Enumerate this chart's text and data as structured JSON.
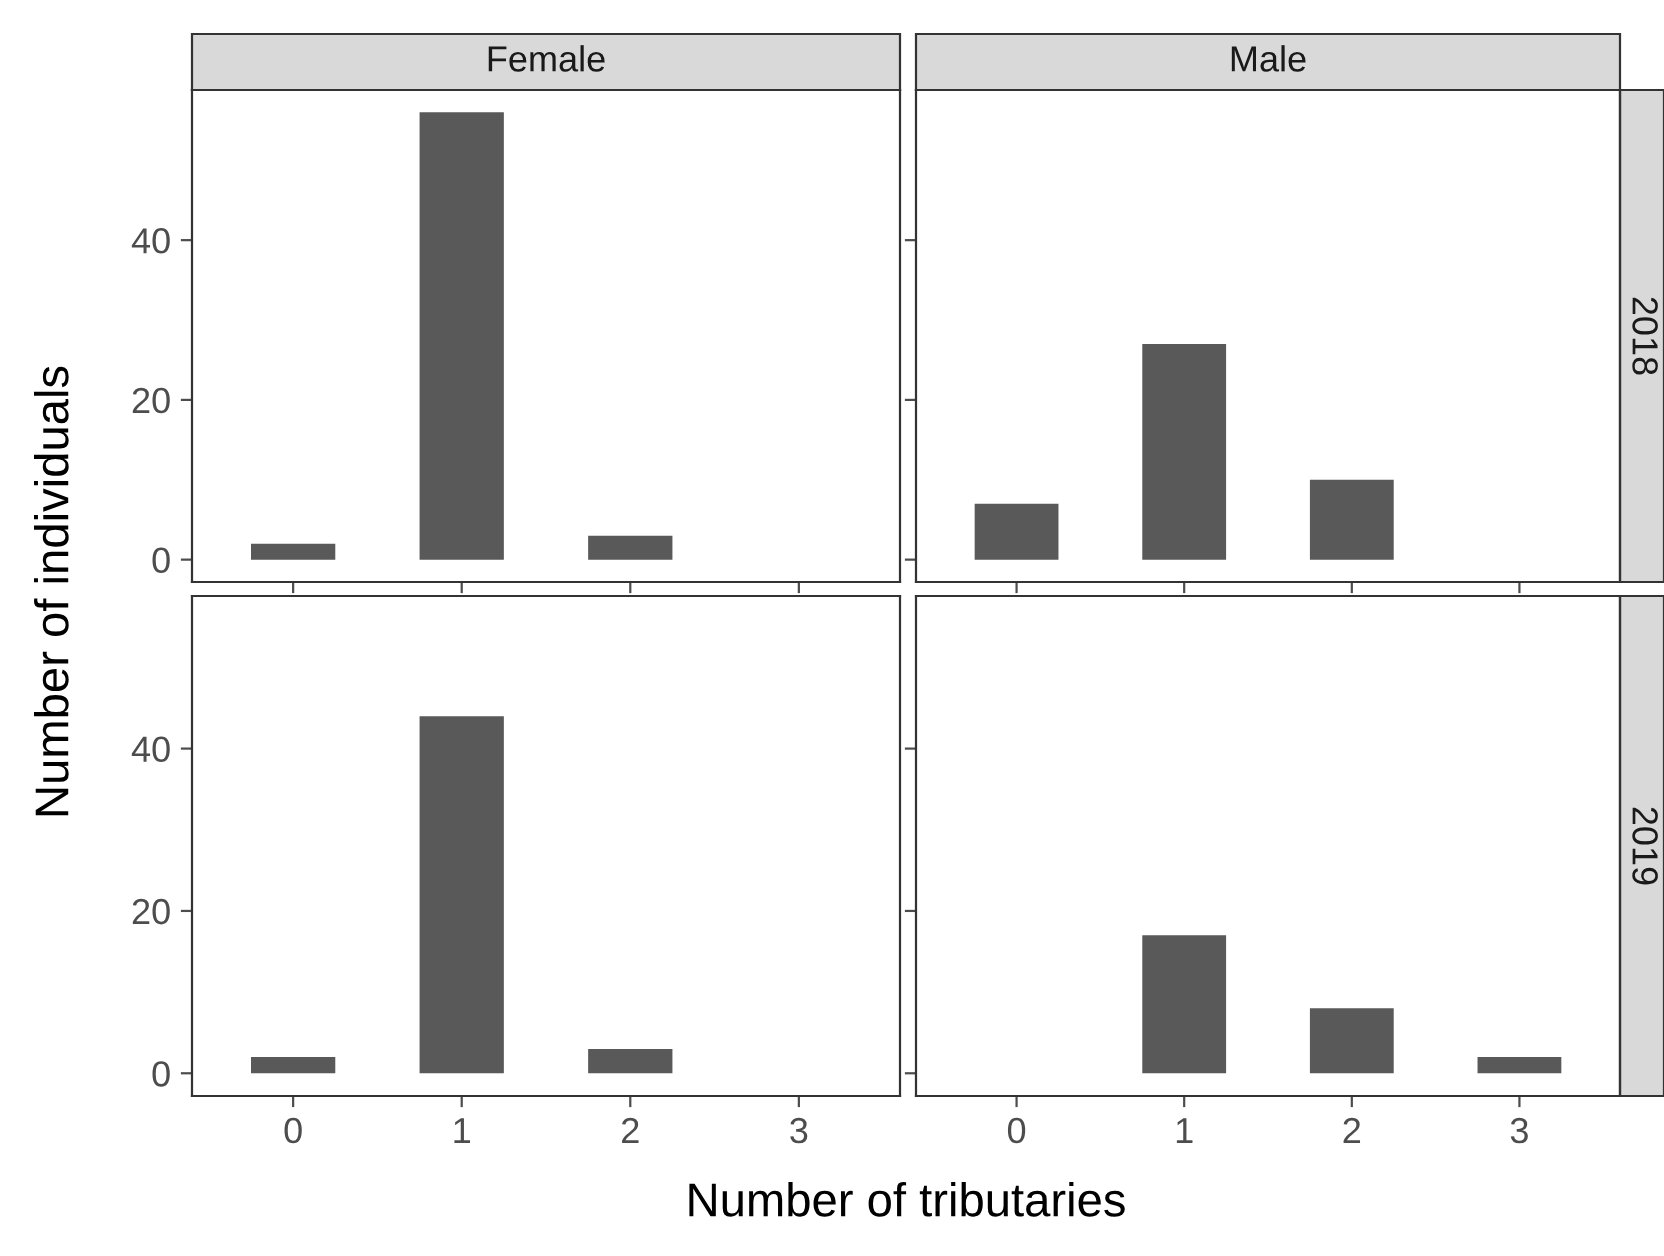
{
  "chart_data": [
    {
      "type": "bar",
      "title": "Female",
      "ylabel": "Number of individuals",
      "categories": [
        "0",
        "1",
        "2",
        "3"
      ],
      "values": [
        2,
        56,
        3,
        null
      ],
      "color": "#595959",
      "ylim": [
        -2.8,
        58.8
      ],
      "yticks": [
        0,
        20,
        40
      ],
      "tick_labels": "y",
      "grid": false,
      "legend": false
    },
    {
      "type": "bar",
      "title": "Male",
      "annotations": [
        "2018"
      ],
      "categories": [
        "0",
        "1",
        "2",
        "3"
      ],
      "values": [
        7,
        27,
        10,
        null
      ],
      "color": "#595959",
      "ylim": [
        -2.8,
        58.8
      ],
      "yticks": [
        0,
        20,
        40
      ],
      "tick_labels": false,
      "grid": false,
      "legend": false
    },
    {
      "type": "bar",
      "xlabel": "Number of tributaries",
      "categories": [
        "0",
        "1",
        "2",
        "3"
      ],
      "values": [
        2,
        44,
        3,
        null
      ],
      "color": "#595959",
      "ylim": [
        -2.8,
        58.8
      ],
      "yticks": [
        0,
        20,
        40
      ],
      "grid": false,
      "legend": false
    },
    {
      "type": "bar",
      "annotations": [
        "2019"
      ],
      "categories": [
        "0",
        "1",
        "2",
        "3"
      ],
      "values": [
        null,
        17,
        8,
        2
      ],
      "color": "#595959",
      "ylim": [
        -2.8,
        58.8
      ],
      "yticks": [
        0,
        20,
        40
      ],
      "tick_labels": "x",
      "grid": false,
      "legend": false
    }
  ]
}
